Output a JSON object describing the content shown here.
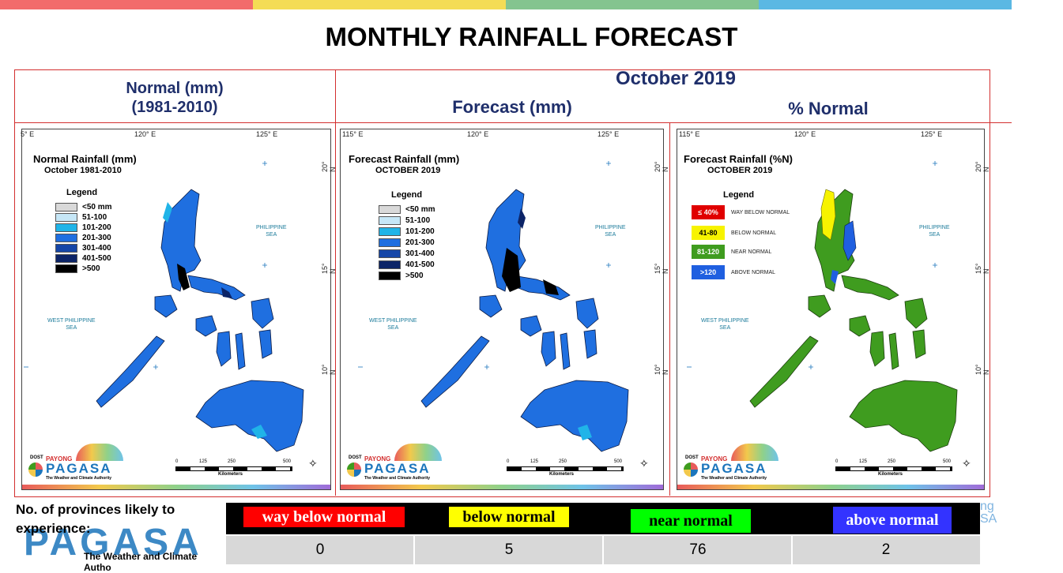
{
  "title": "MONTHLY RAINFALL FORECAST",
  "colors": {
    "top_bar": [
      "#f26b6b",
      "#f4dc55",
      "#84c48f",
      "#5bb8e3"
    ],
    "frame": "#d32f2f",
    "header_text": "#1f2f6b"
  },
  "headers": {
    "normal_line1": "Normal (mm)",
    "normal_line2": "(1981-2010)",
    "month": "October 2019",
    "forecast": "Forecast (mm)",
    "percent": "% Normal"
  },
  "ticks": {
    "lon_a": "115° E",
    "lon_a_cut": "5° E",
    "lon_b": "120° E",
    "lon_c": "125° E",
    "lat_20": "20° N",
    "lat_15": "15° N",
    "lat_10": "10° N"
  },
  "sea_labels": {
    "east_1": "PHILIPPINE",
    "east_2": "SEA",
    "west_1": "WEST PHILIPPINE",
    "west_2": "SEA"
  },
  "maps": {
    "normal": {
      "title_1": "Normal Rainfall (mm)",
      "title_2": "October 1981-2010",
      "legend_title": "Legend",
      "legend": [
        {
          "label": "<50 mm",
          "color": "#d9d9d9"
        },
        {
          "label": "51-100",
          "color": "#c6e7f7"
        },
        {
          "label": "101-200",
          "color": "#20b4e8"
        },
        {
          "label": "201-300",
          "color": "#1f6fe0"
        },
        {
          "label": "301-400",
          "color": "#1546a8"
        },
        {
          "label": "401-500",
          "color": "#0c2467"
        },
        {
          "label": ">500",
          "color": "#000000"
        }
      ]
    },
    "forecast": {
      "title_1": "Forecast Rainfall (mm)",
      "title_2": "OCTOBER 2019",
      "legend_title": "Legend",
      "legend": [
        {
          "label": "<50 mm",
          "color": "#d9d9d9"
        },
        {
          "label": "51-100",
          "color": "#c6e7f7"
        },
        {
          "label": "101-200",
          "color": "#20b4e8"
        },
        {
          "label": "201-300",
          "color": "#1f6fe0"
        },
        {
          "label": "301-400",
          "color": "#1546a8"
        },
        {
          "label": "401-500",
          "color": "#0c2467"
        },
        {
          "label": ">500",
          "color": "#000000"
        }
      ]
    },
    "percent": {
      "title_1": "Forecast Rainfall (%N)",
      "title_2": "OCTOBER 2019",
      "legend_title": "Legend",
      "legend": [
        {
          "box": "≤ 40%",
          "label": "WAY BELOW NORMAL",
          "color": "#e00000",
          "text_color": "#ffffff"
        },
        {
          "box": "41-80",
          "label": "BELOW NORMAL",
          "color": "#f7f300",
          "text_color": "#000000"
        },
        {
          "box": "81-120",
          "label": "NEAR NORMAL",
          "color": "#3f9c1f",
          "text_color": "#ffffff"
        },
        {
          "box": ">120",
          "label": "ABOVE NORMAL",
          "color": "#1f5fe0",
          "text_color": "#ffffff"
        }
      ]
    }
  },
  "logo": {
    "dost": "DOST",
    "payong": "PAYONG",
    "pagasa": "PAGASA",
    "tagline": "The Weather and Climate Authority"
  },
  "scale": {
    "n0": "0",
    "n1": "125",
    "n2": "250",
    "n3": "500",
    "unit": "Kilometers"
  },
  "bottom": {
    "label": "No. of provinces likely to experience:",
    "categories": [
      {
        "label": "way below normal",
        "bg": "#ff0000",
        "color": "#ffffff",
        "count": "0"
      },
      {
        "label": "below normal",
        "bg": "#ffff00",
        "color": "#000000",
        "count": "5"
      },
      {
        "label": "near normal",
        "bg": "#00ff00",
        "color": "#000000",
        "count": "76"
      },
      {
        "label": "above normal",
        "bg": "#3333ff",
        "color": "#ffffff",
        "count": "2"
      }
    ],
    "watermark": "PAGASA",
    "watermark_tagline": "The Weather and Climate Autho",
    "right_fragment_1": "ng",
    "right_fragment_2": "SA"
  }
}
